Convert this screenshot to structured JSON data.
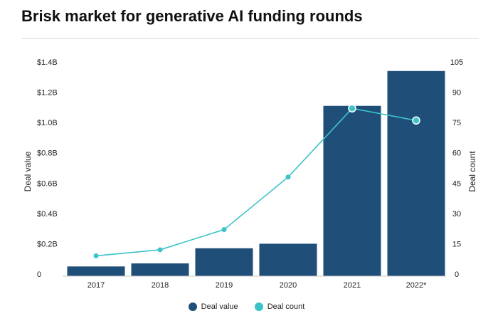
{
  "chart_data": {
    "type": "bar+line",
    "title": "Brisk market for generative AI funding rounds",
    "categories": [
      "2017",
      "2018",
      "2019",
      "2020",
      "2021",
      "2022*"
    ],
    "series": [
      {
        "name": "Deal value",
        "type": "bar",
        "axis": "left",
        "color": "#1f4e79",
        "values": [
          0.05,
          0.07,
          0.17,
          0.2,
          1.11,
          1.34
        ]
      },
      {
        "name": "Deal count",
        "type": "line",
        "axis": "right",
        "color": "#3cc3c9",
        "values": [
          9,
          12,
          22,
          48,
          82,
          76
        ]
      }
    ],
    "left_axis": {
      "label": "Deal value",
      "range": [
        0,
        1.4
      ],
      "ticks": [
        {
          "value": 0,
          "label": "0"
        },
        {
          "value": 0.2,
          "label": "$0.2B"
        },
        {
          "value": 0.4,
          "label": "$0.4B"
        },
        {
          "value": 0.6,
          "label": "$0.6B"
        },
        {
          "value": 0.8,
          "label": "$0.8B"
        },
        {
          "value": 1.0,
          "label": "$1.0B"
        },
        {
          "value": 1.2,
          "label": "$1.2B"
        },
        {
          "value": 1.4,
          "label": "$1.4B"
        }
      ]
    },
    "right_axis": {
      "label": "Deal count",
      "range": [
        0,
        105
      ],
      "ticks": [
        {
          "value": 0,
          "label": "0"
        },
        {
          "value": 15,
          "label": "15"
        },
        {
          "value": 30,
          "label": "30"
        },
        {
          "value": 45,
          "label": "45"
        },
        {
          "value": 60,
          "label": "60"
        },
        {
          "value": 75,
          "label": "75"
        },
        {
          "value": 90,
          "label": "90"
        },
        {
          "value": 105,
          "label": "105"
        }
      ]
    },
    "legend": {
      "position": "bottom-center",
      "entries": [
        "Deal value",
        "Deal count"
      ]
    },
    "grid": false
  }
}
